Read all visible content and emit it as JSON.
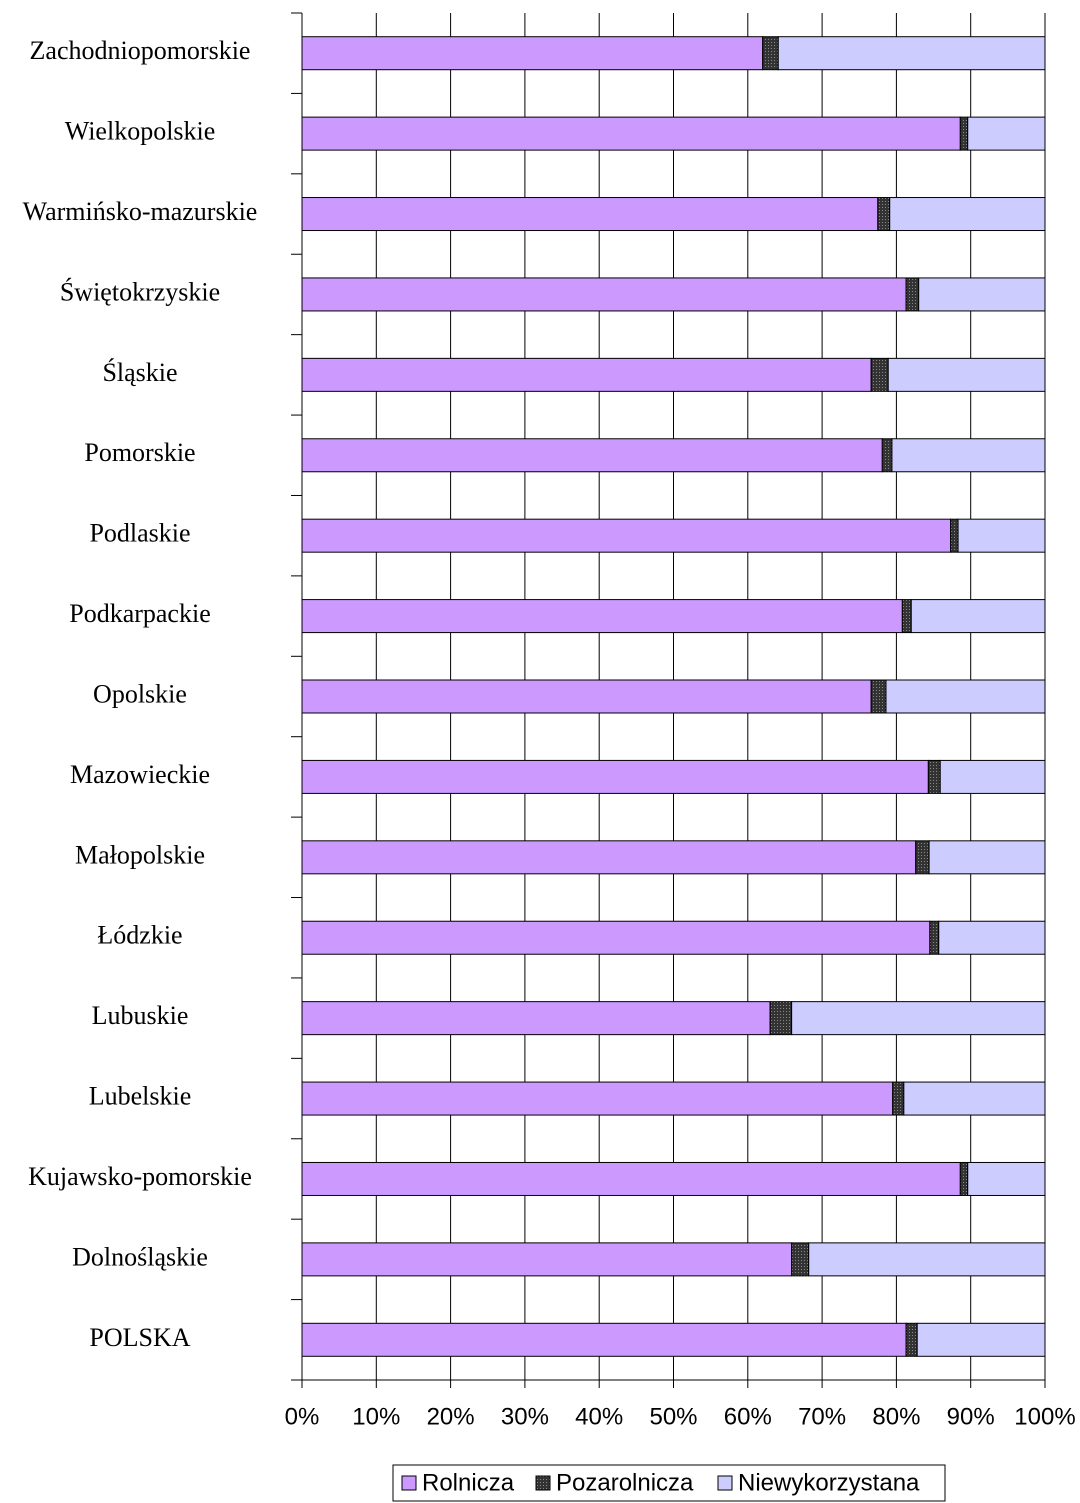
{
  "chart_data": {
    "type": "stacked_barh",
    "categories": [
      "Zachodniopomorskie",
      "Wielkopolskie",
      "Warmińsko-mazurskie",
      "Świętokrzyskie",
      "Śląskie",
      "Pomorskie",
      "Podlaskie",
      "Podkarpackie",
      "Opolskie",
      "Mazowieckie",
      "Małopolskie",
      "Łódzkie",
      "Lubuskie",
      "Lubelskie",
      "Kujawsko-pomorskie",
      "Dolnośląskie",
      "POLSKA"
    ],
    "series": [
      {
        "name": "Rolnicza",
        "color": "#cc99ff",
        "values": [
          62.0,
          88.6,
          77.5,
          81.3,
          76.6,
          78.1,
          87.3,
          80.8,
          76.6,
          84.3,
          82.6,
          84.5,
          63.0,
          79.5,
          88.6,
          65.9,
          81.3
        ]
      },
      {
        "name": "Pozarolnicza",
        "color": "#333333",
        "values": [
          2.1,
          1.0,
          1.6,
          1.7,
          2.3,
          1.3,
          1.0,
          1.2,
          2.0,
          1.6,
          1.8,
          1.2,
          2.9,
          1.5,
          1.0,
          2.3,
          1.5
        ]
      },
      {
        "name": "Niewykorzystana",
        "color": "#ccccff",
        "values": [
          35.9,
          10.4,
          20.9,
          17.0,
          21.1,
          20.6,
          11.7,
          18.0,
          21.4,
          14.1,
          15.6,
          14.3,
          34.1,
          19.0,
          10.4,
          31.8,
          17.2
        ]
      }
    ],
    "xlim": [
      0,
      100
    ],
    "xticks": [
      {
        "value": 0,
        "label": "0%"
      },
      {
        "value": 10,
        "label": "10%"
      },
      {
        "value": 20,
        "label": "20%"
      },
      {
        "value": 30,
        "label": "30%"
      },
      {
        "value": 40,
        "label": "40%"
      },
      {
        "value": 50,
        "label": "50%"
      },
      {
        "value": 60,
        "label": "60%"
      },
      {
        "value": 70,
        "label": "70%"
      },
      {
        "value": 80,
        "label": "80%"
      },
      {
        "value": 90,
        "label": "90%"
      },
      {
        "value": 100,
        "label": "100%"
      }
    ],
    "grid": true
  }
}
